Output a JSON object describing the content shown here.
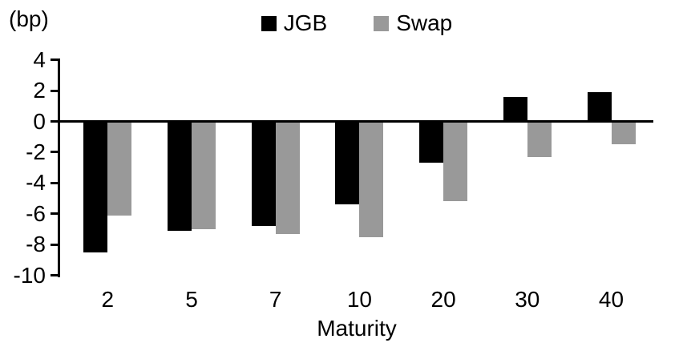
{
  "chart_data": {
    "type": "bar",
    "title": "",
    "y_unit_label": "(bp)",
    "xlabel": "Maturity",
    "categories": [
      "2",
      "5",
      "7",
      "10",
      "20",
      "30",
      "40"
    ],
    "series": [
      {
        "name": "JGB",
        "color": "#000000",
        "values": [
          -8.5,
          -7.1,
          -6.8,
          -5.4,
          -2.7,
          1.6,
          1.9
        ]
      },
      {
        "name": "Swap",
        "color": "#999999",
        "values": [
          -6.1,
          -7.0,
          -7.3,
          -7.5,
          -5.2,
          -2.3,
          -1.5
        ]
      }
    ],
    "yticks": [
      4,
      2,
      0,
      -2,
      -4,
      -6,
      -8,
      -10
    ],
    "ylim": [
      -10,
      4
    ],
    "legend_position": "top",
    "grid": false,
    "colors": {
      "jgb": "#000000",
      "swap": "#999999",
      "axis": "#000000",
      "background": "#ffffff"
    }
  }
}
